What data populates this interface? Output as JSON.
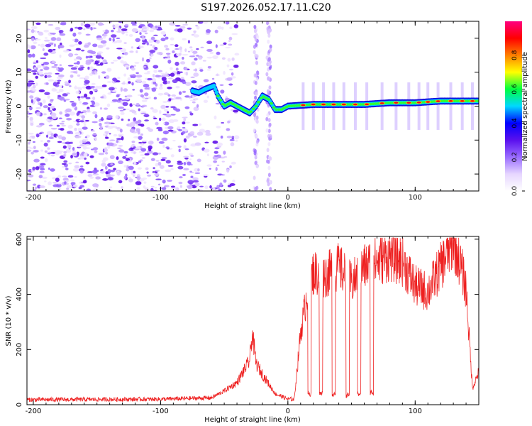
{
  "title": "S197.2026.052.17.11.C20",
  "chart_data": [
    {
      "type": "heatmap",
      "name": "spectrogram",
      "xlabel": "Height of straight line (km)",
      "ylabel": "Frequency (Hz)",
      "xlim": [
        -205,
        150
      ],
      "ylim": [
        -25,
        25
      ],
      "xticks": [
        -200,
        -100,
        0,
        100
      ],
      "yticks": [
        -20,
        -10,
        0,
        10,
        20
      ],
      "colorbar": {
        "label": "Normalized spectral amplitude",
        "range": [
          0,
          1
        ],
        "ticks": [
          0.0,
          0.2,
          0.4,
          0.6,
          0.8
        ],
        "tick_labels": [
          "0.0",
          "0.2",
          "0.4",
          "0.6",
          "0.8"
        ],
        "colors": [
          "#ffffff",
          "#e6d6ff",
          "#9a6cff",
          "#5a10ee",
          "#0000ff",
          "#00d8ff",
          "#00ff40",
          "#ffff00",
          "#ff8000",
          "#ff0000",
          "#ff0080"
        ]
      },
      "noise_region": {
        "x": [
          -205,
          -60
        ],
        "freq": [
          -25,
          25
        ],
        "amplitude": "low (0.0-0.2)"
      },
      "signal_track": {
        "x": [
          -75,
          -70,
          -65,
          -58,
          -55,
          -50,
          -45,
          -40,
          -35,
          -30,
          -25,
          -20,
          -15,
          -10,
          -5,
          0,
          20,
          40,
          60,
          80,
          100,
          120,
          150
        ],
        "freq": [
          4.5,
          4,
          5,
          6,
          3,
          0,
          1,
          0,
          -1,
          -2,
          0,
          3,
          2,
          -1,
          -1,
          0,
          0.5,
          0.5,
          0.5,
          1,
          1,
          1.5,
          1.5
        ]
      },
      "signal_peaks_x": [
        12,
        20,
        28,
        36,
        44,
        53,
        62,
        74,
        85,
        95,
        103,
        110,
        118,
        128,
        137,
        145
      ]
    },
    {
      "type": "line",
      "name": "snr",
      "xlabel": "Height of straight line (km)",
      "ylabel": "SNR (10 * v/v)",
      "xlim": [
        -205,
        150
      ],
      "ylim": [
        0,
        610
      ],
      "xticks": [
        -200,
        -100,
        0,
        100
      ],
      "yticks": [
        0,
        200,
        400,
        600
      ],
      "color": "#ee2020",
      "envelope": {
        "x": [
          -205,
          -100,
          -60,
          -50,
          -40,
          -30,
          -28,
          -25,
          -20,
          -10,
          0,
          5,
          10,
          15,
          20,
          30,
          40,
          50,
          60,
          70,
          80,
          90,
          100,
          110,
          120,
          130,
          135,
          140,
          145,
          150
        ],
        "y": [
          18,
          20,
          25,
          50,
          80,
          160,
          260,
          150,
          110,
          40,
          20,
          20,
          260,
          400,
          480,
          470,
          500,
          440,
          500,
          520,
          540,
          520,
          430,
          410,
          500,
          590,
          520,
          420,
          60,
          120
        ]
      },
      "dropouts": [
        {
          "x": 17,
          "y": 40
        },
        {
          "x": 26,
          "y": 40
        },
        {
          "x": 36,
          "y": 40
        },
        {
          "x": 47,
          "y": 35
        },
        {
          "x": 56,
          "y": 40
        },
        {
          "x": 66,
          "y": 45
        }
      ]
    }
  ]
}
